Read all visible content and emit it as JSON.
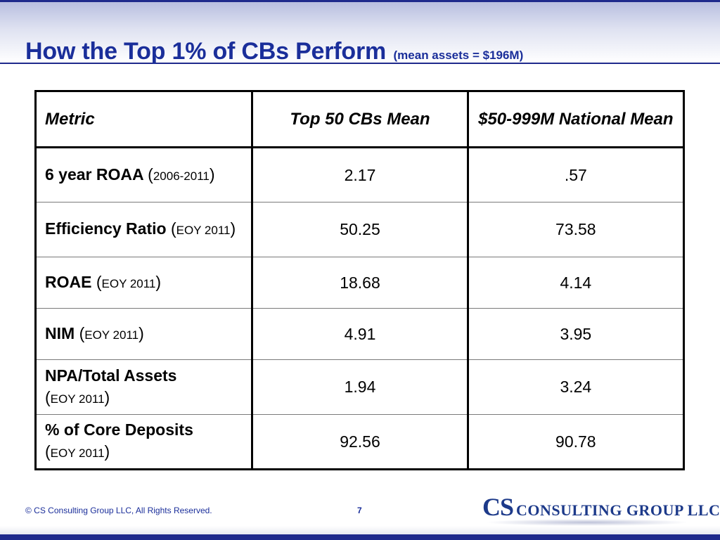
{
  "slide": {
    "title": "How the Top 1% of CBs Perform",
    "subtitle": "(mean assets = $196M)"
  },
  "table": {
    "headers": {
      "metric": "Metric",
      "top50": "Top 50 CBs Mean",
      "national": "$50-999M National Mean"
    },
    "rows": [
      {
        "metric": "6 year ROAA",
        "period": "2006-2011",
        "top50": "2.17",
        "national": ".57"
      },
      {
        "metric": "Efficiency Ratio",
        "period": "EOY 2011",
        "top50": "50.25",
        "national": "73.58"
      },
      {
        "metric": "ROAE",
        "period": "EOY 2011",
        "top50": "18.68",
        "national": "4.14"
      },
      {
        "metric": "NIM",
        "period": "EOY 2011",
        "top50": "4.91",
        "national": "3.95"
      },
      {
        "metric": "NPA/Total Assets",
        "period": "EOY 2011",
        "top50": "1.94",
        "national": "3.24"
      },
      {
        "metric": "% of Core Deposits",
        "period": "EOY 2011",
        "top50": "92.56",
        "national": "90.78"
      }
    ]
  },
  "footer": {
    "copyright": "© CS Consulting Group LLC, All Rights Reserved.",
    "page_number": "7",
    "logo_cs": "CS",
    "logo_rest": "CONSULTING GROUP LLC"
  }
}
